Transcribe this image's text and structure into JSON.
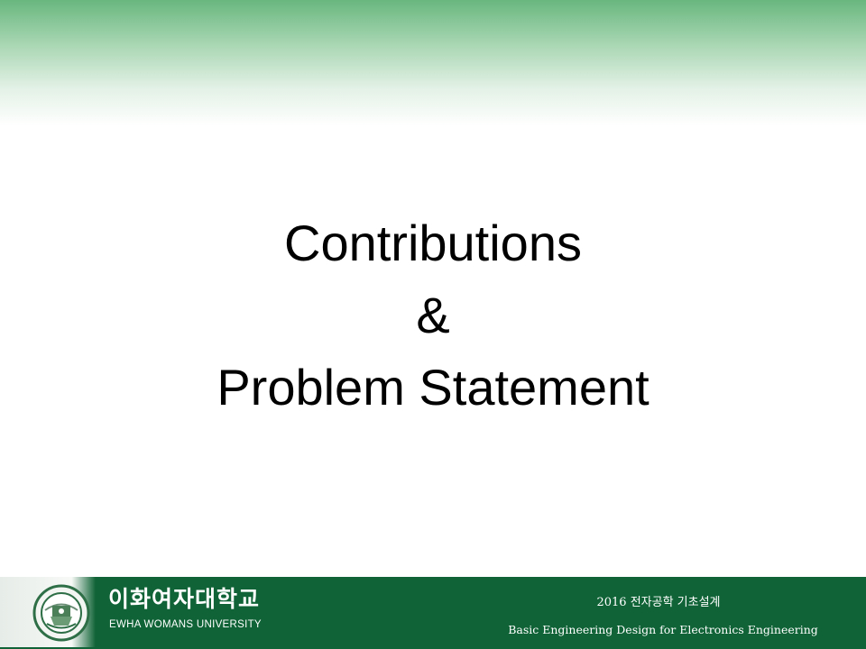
{
  "slide": {
    "title_lines": [
      "Contributions",
      "&",
      "Problem Statement"
    ]
  },
  "footer": {
    "university_name_ko": "이화여자대학교",
    "university_name_en": "EWHA WOMANS UNIVERSITY",
    "course_title_ko": "2016 전자공학 기초설계",
    "course_title_en": "Basic Engineering Design for Electronics Engineering"
  },
  "colors": {
    "brand_green": "#0f6336",
    "header_gradient_green": "#69b77f",
    "title_text": "#000000"
  },
  "icons": {
    "logo": "ewha-university-seal-icon"
  }
}
